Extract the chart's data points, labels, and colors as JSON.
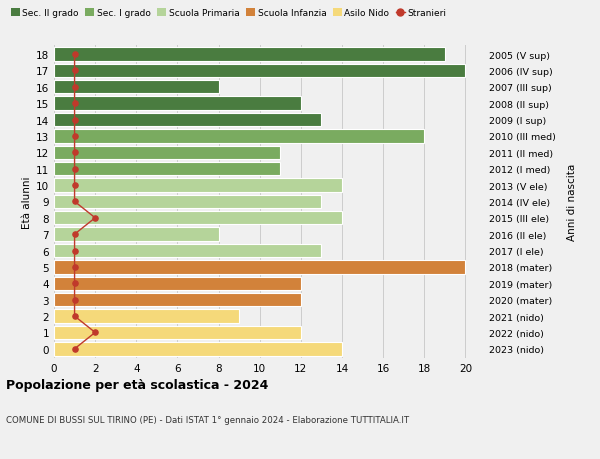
{
  "ages": [
    18,
    17,
    16,
    15,
    14,
    13,
    12,
    11,
    10,
    9,
    8,
    7,
    6,
    5,
    4,
    3,
    2,
    1,
    0
  ],
  "years": [
    "2005 (V sup)",
    "2006 (IV sup)",
    "2007 (III sup)",
    "2008 (II sup)",
    "2009 (I sup)",
    "2010 (III med)",
    "2011 (II med)",
    "2012 (I med)",
    "2013 (V ele)",
    "2014 (IV ele)",
    "2015 (III ele)",
    "2016 (II ele)",
    "2017 (I ele)",
    "2018 (mater)",
    "2019 (mater)",
    "2020 (mater)",
    "2021 (nido)",
    "2022 (nido)",
    "2023 (nido)"
  ],
  "values": [
    19,
    20,
    8,
    12,
    13,
    18,
    11,
    11,
    14,
    13,
    14,
    8,
    13,
    20,
    12,
    12,
    9,
    12,
    14
  ],
  "stranieri": [
    1,
    1,
    1,
    1,
    1,
    1,
    1,
    1,
    1,
    1,
    2,
    1,
    1,
    1,
    1,
    1,
    1,
    2,
    1
  ],
  "bar_colors": [
    "#4a7c40",
    "#4a7c40",
    "#4a7c40",
    "#4a7c40",
    "#4a7c40",
    "#7aab60",
    "#7aab60",
    "#7aab60",
    "#b5d49a",
    "#b5d49a",
    "#b5d49a",
    "#b5d49a",
    "#b5d49a",
    "#d2823a",
    "#d2823a",
    "#d2823a",
    "#f5d97a",
    "#f5d97a",
    "#f5d97a"
  ],
  "legend_labels": [
    "Sec. II grado",
    "Sec. I grado",
    "Scuola Primaria",
    "Scuola Infanzia",
    "Asilo Nido",
    "Stranieri"
  ],
  "legend_colors": [
    "#4a7c40",
    "#7aab60",
    "#b5d49a",
    "#d2823a",
    "#f5d97a",
    "#c0392b"
  ],
  "stranieri_color": "#c0392b",
  "title_bold": "Popolazione per età scolastica - 2024",
  "subtitle": "COMUNE DI BUSSI SUL TIRINO (PE) - Dati ISTAT 1° gennaio 2024 - Elaborazione TUTTITALIA.IT",
  "ylabel_left": "Età alunni",
  "ylabel_right": "Anni di nascita",
  "xlim": [
    0,
    21
  ],
  "xticks": [
    0,
    2,
    4,
    6,
    8,
    10,
    12,
    14,
    16,
    18,
    20
  ],
  "background_color": "#f0f0f0",
  "bar_height": 0.82,
  "grid_color": "#cccccc"
}
